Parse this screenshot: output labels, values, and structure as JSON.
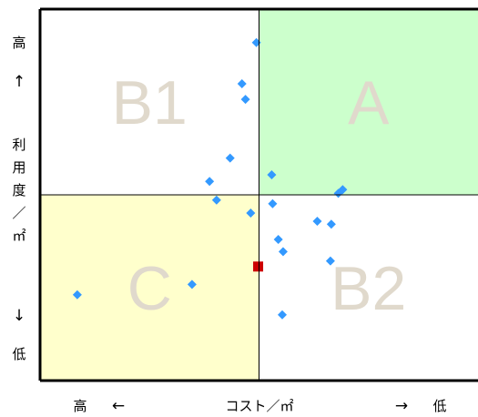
{
  "chart_data": {
    "type": "scatter",
    "xlim": [
      0,
      100
    ],
    "ylim": [
      0,
      100
    ],
    "x_divider": 50,
    "y_divider": 50,
    "quadrants": [
      {
        "id": "A",
        "label": "A",
        "x_range": [
          50,
          100
        ],
        "y_range": [
          50,
          100
        ],
        "fill": "#ccffcc"
      },
      {
        "id": "B1",
        "label": "B1",
        "x_range": [
          0,
          50
        ],
        "y_range": [
          50,
          100
        ],
        "fill": "#ffffff"
      },
      {
        "id": "C",
        "label": "C",
        "x_range": [
          0,
          50
        ],
        "y_range": [
          0,
          50
        ],
        "fill": "#ffffcc"
      },
      {
        "id": "B2",
        "label": "B2",
        "x_range": [
          50,
          100
        ],
        "y_range": [
          0,
          50
        ],
        "fill": "#ffffff"
      }
    ],
    "quadrant_label_color": "#e0d9cc",
    "series": [
      {
        "marker": "diamond",
        "color": "#3399ff",
        "points": [
          {
            "x": 49.4,
            "y": 91.0
          },
          {
            "x": 46.1,
            "y": 79.9
          },
          {
            "x": 46.9,
            "y": 75.7
          },
          {
            "x": 43.4,
            "y": 59.9
          },
          {
            "x": 38.7,
            "y": 53.6
          },
          {
            "x": 40.3,
            "y": 48.6
          },
          {
            "x": 48.1,
            "y": 45.1
          },
          {
            "x": 52.9,
            "y": 55.4
          },
          {
            "x": 53.1,
            "y": 47.6
          },
          {
            "x": 68.1,
            "y": 50.4
          },
          {
            "x": 69.1,
            "y": 51.4
          },
          {
            "x": 63.3,
            "y": 42.9
          },
          {
            "x": 66.5,
            "y": 42.1
          },
          {
            "x": 54.4,
            "y": 38.0
          },
          {
            "x": 55.5,
            "y": 34.7
          },
          {
            "x": 66.3,
            "y": 32.2
          },
          {
            "x": 8.5,
            "y": 23.1
          },
          {
            "x": 34.7,
            "y": 25.9
          },
          {
            "x": 55.3,
            "y": 17.7
          }
        ]
      },
      {
        "marker": "square",
        "color": "#cc0000",
        "points": [
          {
            "x": 49.8,
            "y": 30.7
          }
        ]
      }
    ],
    "x_axis": {
      "left": "高",
      "left_arrow": "←",
      "label": "コスト／㎡",
      "right_arrow": "→",
      "right": "低"
    },
    "y_axis": {
      "top": "高",
      "top_arrow": "↑",
      "label_chars": [
        "利",
        "用",
        "度",
        "／",
        "㎡"
      ],
      "bottom_arrow": "↓",
      "bottom": "低"
    }
  }
}
